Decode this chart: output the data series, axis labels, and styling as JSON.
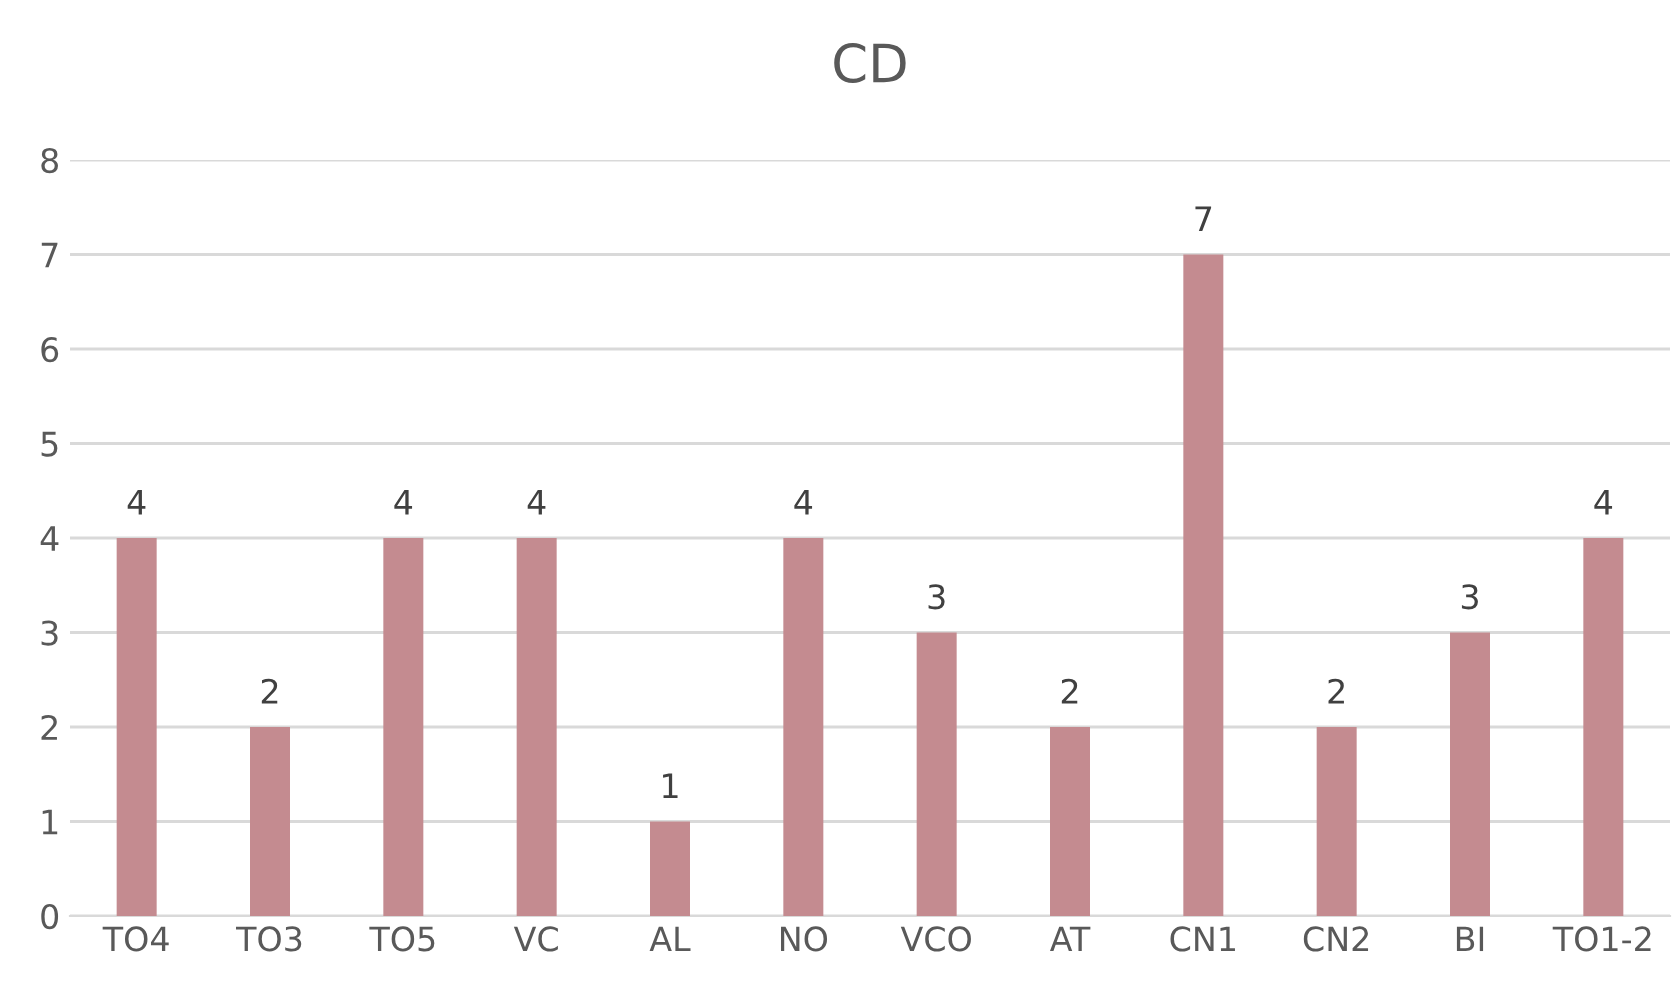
{
  "chart_data": {
    "type": "bar",
    "title": "CD",
    "categories": [
      "TO4",
      "TO3",
      "TO5",
      "VC",
      "AL",
      "NO",
      "VCO",
      "AT",
      "CN1",
      "CN2",
      "BI",
      "TO1-2"
    ],
    "values": [
      4,
      2,
      4,
      4,
      1,
      4,
      3,
      2,
      7,
      2,
      3,
      4
    ],
    "color": "#c48b90",
    "ylim": [
      0,
      8
    ],
    "yticks": [
      0,
      1,
      2,
      3,
      4,
      5,
      6,
      7,
      8
    ],
    "grid": "y",
    "data_labels": true
  }
}
